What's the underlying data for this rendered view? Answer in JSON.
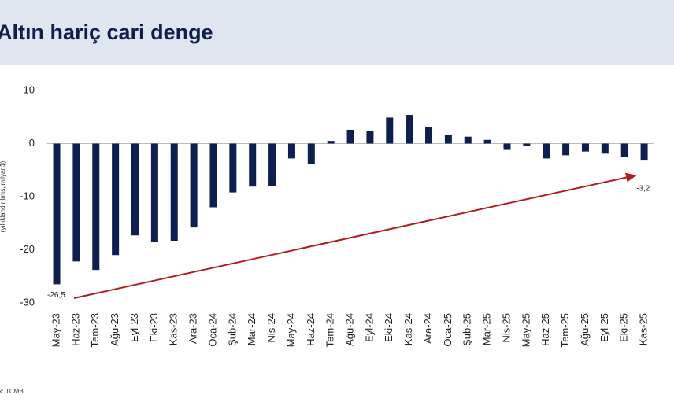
{
  "chart_data": {
    "type": "bar",
    "title": "Altın hariç cari denge",
    "y_label": "(yıllıklandırılmış, milyar $)",
    "source": "Kaynak: TCMB",
    "categories": [
      "May-23",
      "Haz-23",
      "Tem-23",
      "Ağu-23",
      "Eyl-23",
      "Eki-23",
      "Kas-23",
      "Ara-23",
      "Oca-24",
      "Şub-24",
      "Mar-24",
      "Nis-24",
      "May-24",
      "Haz-24",
      "Tem-24",
      "Ağu-24",
      "Eyl-24",
      "Eki-24",
      "Kas-24",
      "Ara-24",
      "Oca-25",
      "Şub-25",
      "Mar-25",
      "Nis-25",
      "May-25",
      "Haz-25",
      "Tem-25",
      "Ağu-25",
      "Eyl-25",
      "Eki-25",
      "Kas-25"
    ],
    "values": [
      -26.5,
      -22.2,
      -23.8,
      -21.0,
      -17.3,
      -18.5,
      -18.3,
      -15.8,
      -12.0,
      -9.2,
      -8.1,
      -8.0,
      -2.8,
      -3.8,
      0.5,
      2.6,
      2.3,
      4.9,
      5.4,
      3.1,
      1.6,
      1.3,
      0.7,
      -1.2,
      -0.4,
      -2.8,
      -2.2,
      -1.5,
      -1.9,
      -2.6,
      -3.2
    ],
    "value_labels": [
      "-26,5",
      null,
      null,
      null,
      null,
      null,
      null,
      null,
      null,
      null,
      null,
      null,
      null,
      null,
      null,
      null,
      null,
      null,
      null,
      null,
      null,
      null,
      null,
      null,
      null,
      null,
      null,
      null,
      null,
      null,
      "-3,2"
    ],
    "color": "#0d1f4f",
    "ylim": [
      -30,
      10
    ],
    "yticks": [
      -30,
      -20,
      -10,
      0,
      10
    ]
  }
}
